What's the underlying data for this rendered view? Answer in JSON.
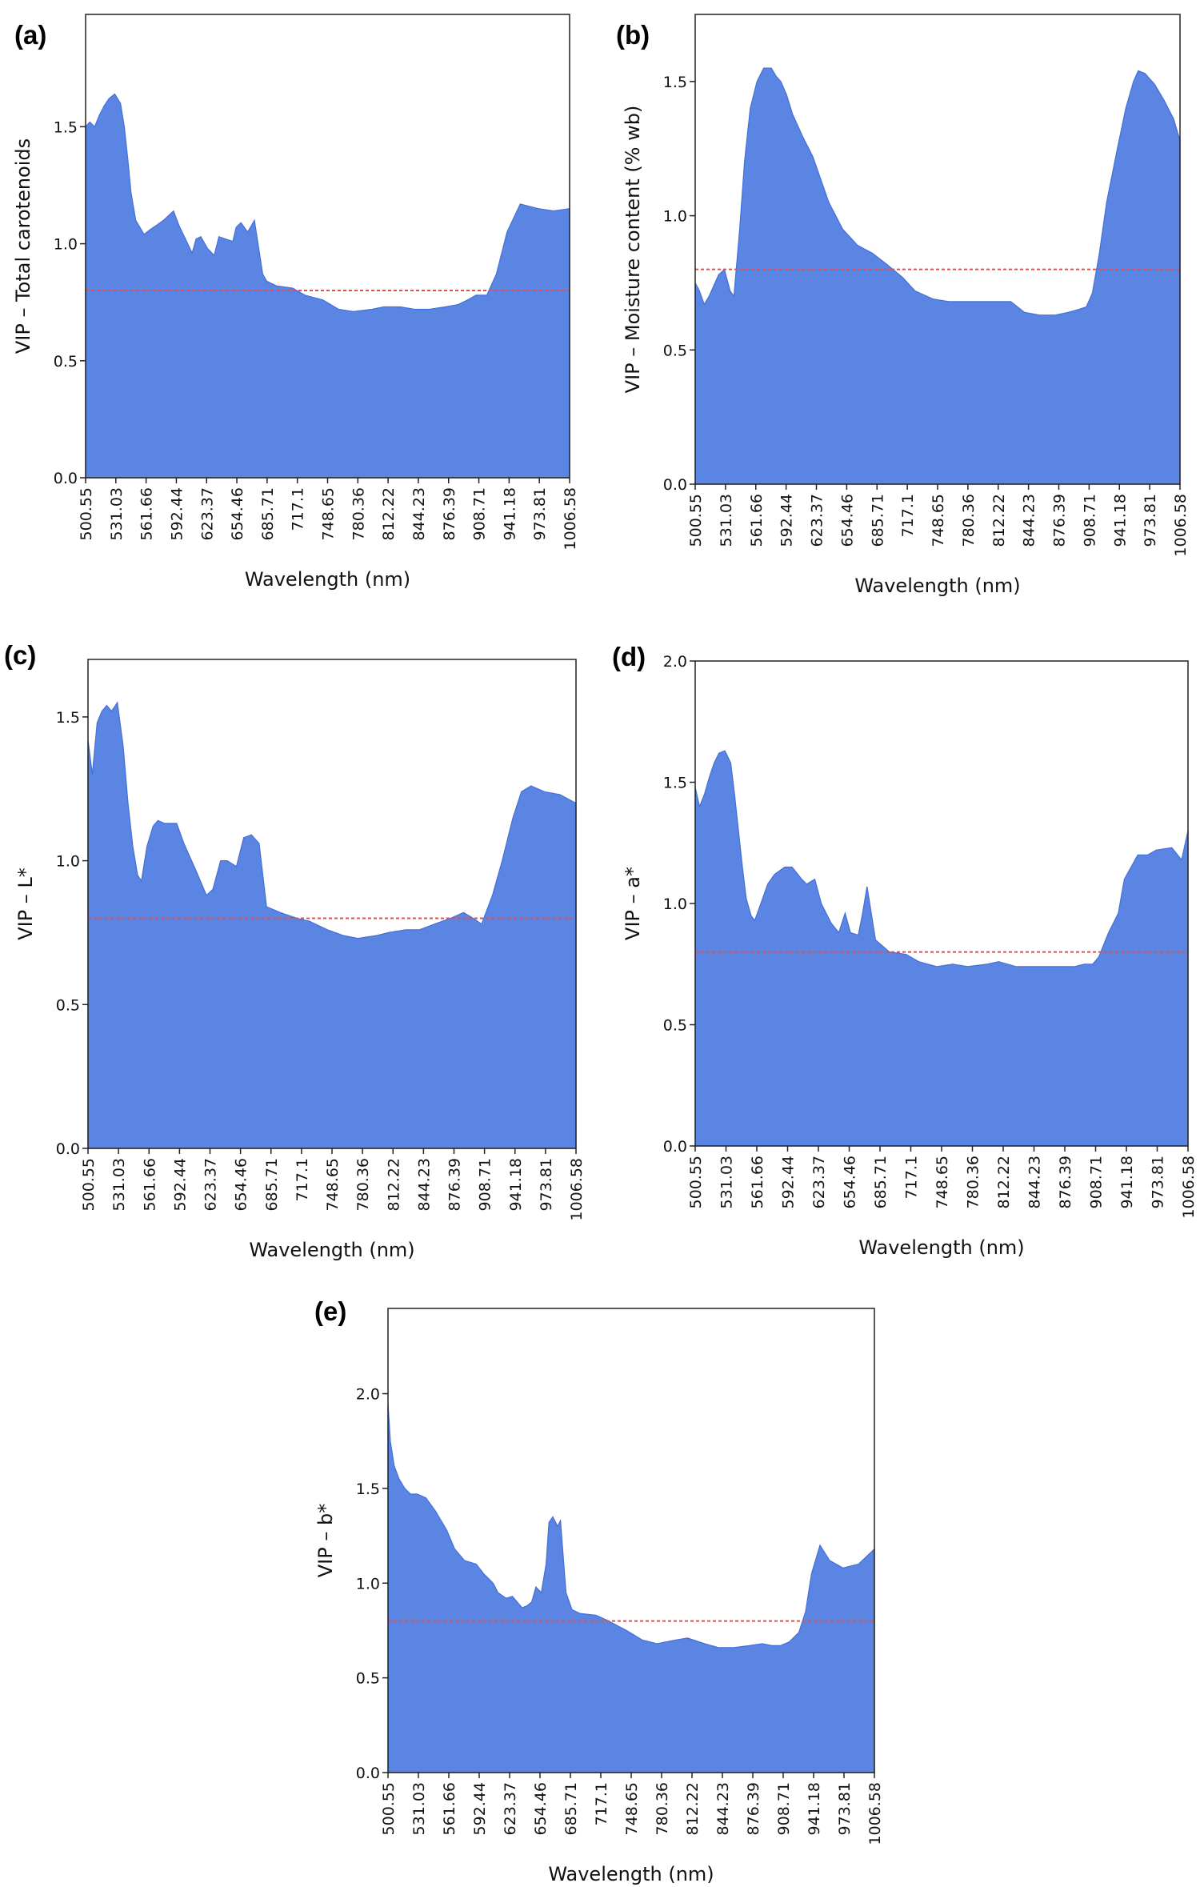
{
  "figure": {
    "background": "#ffffff"
  },
  "style": {
    "bar_color": "#5b85e3",
    "bar_edge": "#4470d6",
    "threshold_color": "#e05050",
    "axis_color": "#222222"
  },
  "chart_data": [
    {
      "panel": "(a)",
      "type": "area",
      "xlabel": "Wavelength (nm)",
      "ylabel": "VIP – Total carotenoids",
      "ylim": [
        0,
        1.98
      ],
      "yticks": [
        "0.0",
        "0.5",
        "1.0",
        "1.5"
      ],
      "x_ticks": [
        "500.55",
        "531.03",
        "561.66",
        "592.44",
        "623.37",
        "654.46",
        "685.71",
        "717.1",
        "748.65",
        "780.36",
        "812.22",
        "844.23",
        "876.39",
        "908.71",
        "941.18",
        "973.81",
        "1006.58"
      ],
      "threshold": 0.8,
      "x": [
        500.55,
        505,
        510,
        515,
        520,
        525,
        531.03,
        537,
        541,
        545,
        548,
        553,
        561.66,
        568,
        575,
        582,
        592.44,
        598,
        605,
        612,
        616,
        621,
        628,
        635,
        640,
        647,
        654.46,
        658,
        663,
        670,
        677,
        685.71,
        690,
        700,
        717.1,
        730,
        748.65,
        765,
        780.36,
        800,
        812.22,
        830,
        844.23,
        860,
        876.39,
        890,
        900,
        908.71,
        920,
        930,
        941.18,
        955,
        973.81,
        990,
        1006.58
      ],
      "y": [
        1.5,
        1.52,
        1.5,
        1.55,
        1.59,
        1.62,
        1.64,
        1.6,
        1.5,
        1.35,
        1.22,
        1.1,
        1.04,
        1.06,
        1.08,
        1.1,
        1.14,
        1.08,
        1.02,
        0.96,
        1.02,
        1.03,
        0.98,
        0.95,
        1.03,
        1.02,
        1.01,
        1.07,
        1.09,
        1.05,
        1.1,
        0.87,
        0.84,
        0.82,
        0.81,
        0.78,
        0.76,
        0.72,
        0.71,
        0.72,
        0.73,
        0.73,
        0.72,
        0.72,
        0.73,
        0.74,
        0.76,
        0.78,
        0.78,
        0.87,
        1.05,
        1.17,
        1.15,
        1.14,
        1.15
      ]
    },
    {
      "panel": "(b)",
      "type": "area",
      "xlabel": "Wavelength (nm)",
      "ylabel": "VIP – Moisture content (% wb)",
      "ylim": [
        0,
        1.75
      ],
      "yticks": [
        "0.0",
        "0.5",
        "1.0",
        "1.5"
      ],
      "x_ticks": [
        "500.55",
        "531.03",
        "561.66",
        "592.44",
        "623.37",
        "654.46",
        "685.71",
        "717.1",
        "748.65",
        "780.36",
        "812.22",
        "844.23",
        "876.39",
        "908.71",
        "941.18",
        "973.81",
        "1006.58"
      ],
      "threshold": 0.8,
      "x": [
        500.55,
        505,
        510,
        515,
        520,
        525,
        531.03,
        537,
        541,
        547,
        552,
        558,
        565,
        572,
        580,
        585,
        590,
        596,
        602,
        612,
        623.37,
        640,
        654.46,
        670,
        685.71,
        700,
        717.1,
        730,
        748.65,
        765,
        780.36,
        800,
        812.22,
        830,
        844.23,
        860,
        876.39,
        890,
        900,
        908.71,
        915,
        922,
        930,
        941.18,
        950,
        958,
        963,
        970,
        980,
        990,
        1000,
        1006.58
      ],
      "y": [
        0.75,
        0.72,
        0.67,
        0.7,
        0.74,
        0.78,
        0.8,
        0.72,
        0.7,
        0.95,
        1.2,
        1.4,
        1.5,
        1.55,
        1.55,
        1.52,
        1.5,
        1.45,
        1.38,
        1.3,
        1.22,
        1.05,
        0.95,
        0.89,
        0.86,
        0.82,
        0.77,
        0.72,
        0.69,
        0.68,
        0.68,
        0.68,
        0.68,
        0.68,
        0.64,
        0.63,
        0.63,
        0.64,
        0.65,
        0.66,
        0.71,
        0.85,
        1.05,
        1.25,
        1.4,
        1.5,
        1.54,
        1.53,
        1.49,
        1.43,
        1.36,
        1.28
      ]
    },
    {
      "panel": "(c)",
      "type": "area",
      "xlabel": "Wavelength (nm)",
      "ylabel": "VIP – L*",
      "ylim": [
        0,
        1.7
      ],
      "yticks": [
        "0.0",
        "0.5",
        "1.0",
        "1.5"
      ],
      "x_ticks": [
        "500.55",
        "531.03",
        "561.66",
        "592.44",
        "623.37",
        "654.46",
        "685.71",
        "717.1",
        "748.65",
        "780.36",
        "812.22",
        "844.23",
        "876.39",
        "908.71",
        "941.18",
        "973.81",
        "1006.58"
      ],
      "threshold": 0.8,
      "x": [
        500.55,
        505,
        510,
        515,
        520,
        525,
        531.03,
        537,
        542,
        547,
        552,
        556,
        561.66,
        568,
        573,
        580,
        592.44,
        600,
        612,
        623.37,
        630,
        638,
        645,
        654.46,
        662,
        670,
        678,
        685.71,
        700,
        717.1,
        730,
        748.65,
        765,
        780.36,
        800,
        812.22,
        830,
        844.23,
        860,
        876.39,
        890,
        900,
        908.71,
        920,
        930,
        941.18,
        950,
        960,
        973.81,
        990,
        1006.58
      ],
      "y": [
        1.42,
        1.3,
        1.48,
        1.52,
        1.54,
        1.52,
        1.55,
        1.4,
        1.2,
        1.05,
        0.95,
        0.93,
        1.05,
        1.12,
        1.14,
        1.13,
        1.13,
        1.06,
        0.97,
        0.88,
        0.9,
        1.0,
        1.0,
        0.98,
        1.08,
        1.09,
        1.06,
        0.84,
        0.82,
        0.8,
        0.79,
        0.76,
        0.74,
        0.73,
        0.74,
        0.75,
        0.76,
        0.76,
        0.78,
        0.8,
        0.82,
        0.8,
        0.78,
        0.88,
        1.0,
        1.15,
        1.24,
        1.26,
        1.24,
        1.23,
        1.2
      ]
    },
    {
      "panel": "(d)",
      "type": "area",
      "xlabel": "Wavelength (nm)",
      "ylabel": "VIP – a*",
      "ylim": [
        0,
        2.0
      ],
      "yticks": [
        "0.0",
        "0.5",
        "1.0",
        "1.5",
        "2.0"
      ],
      "x_ticks": [
        "500.55",
        "531.03",
        "561.66",
        "592.44",
        "623.37",
        "654.46",
        "685.71",
        "717.1",
        "748.65",
        "780.36",
        "812.22",
        "844.23",
        "876.39",
        "908.71",
        "941.18",
        "973.81",
        "1006.58"
      ],
      "threshold": 0.8,
      "x": [
        500.55,
        505,
        510,
        515,
        520,
        525,
        531.03,
        537,
        541,
        545,
        549,
        553,
        558,
        561.66,
        568,
        575,
        582,
        592.44,
        600,
        610,
        615,
        623.37,
        630,
        640,
        648,
        654.46,
        660,
        668,
        672,
        677,
        685.71,
        700,
        717.1,
        730,
        748.65,
        765,
        780.36,
        800,
        812.22,
        830,
        844.23,
        860,
        876.39,
        890,
        900,
        908.71,
        915,
        925,
        935,
        941.18,
        955,
        965,
        973.81,
        990,
        1000,
        1006.58
      ],
      "y": [
        1.48,
        1.4,
        1.45,
        1.52,
        1.58,
        1.62,
        1.63,
        1.58,
        1.45,
        1.3,
        1.15,
        1.02,
        0.95,
        0.93,
        1.0,
        1.08,
        1.12,
        1.15,
        1.15,
        1.1,
        1.08,
        1.1,
        1.0,
        0.92,
        0.88,
        0.96,
        0.88,
        0.87,
        0.95,
        1.07,
        0.85,
        0.8,
        0.79,
        0.76,
        0.74,
        0.75,
        0.74,
        0.75,
        0.76,
        0.74,
        0.74,
        0.74,
        0.74,
        0.74,
        0.75,
        0.75,
        0.78,
        0.88,
        0.96,
        1.1,
        1.2,
        1.2,
        1.22,
        1.23,
        1.18,
        1.3
      ]
    },
    {
      "panel": "(e)",
      "type": "area",
      "xlabel": "Wavelength (nm)",
      "ylabel": "VIP – b*",
      "ylim": [
        0,
        2.45
      ],
      "yticks": [
        "0.0",
        "0.5",
        "1.0",
        "1.5",
        "2.0"
      ],
      "x_ticks": [
        "500.55",
        "531.03",
        "561.66",
        "592.44",
        "623.37",
        "654.46",
        "685.71",
        "717.1",
        "748.65",
        "780.36",
        "812.22",
        "844.23",
        "876.39",
        "908.71",
        "941.18",
        "973.81",
        "1006.58"
      ],
      "threshold": 0.8,
      "x": [
        500.55,
        503,
        507,
        512,
        518,
        524,
        531.03,
        540,
        550,
        561.66,
        570,
        580,
        592.44,
        600,
        610,
        615,
        623.37,
        630,
        635,
        640,
        645,
        650,
        654.46,
        660,
        665,
        668,
        672,
        677,
        680,
        685.71,
        692,
        700,
        717.1,
        730,
        748.65,
        765,
        780.36,
        800,
        812.22,
        830,
        844.23,
        860,
        876.39,
        890,
        900,
        908.71,
        918,
        928,
        935,
        941.18,
        950,
        960,
        973.81,
        990,
        1006.58
      ],
      "y": [
        1.95,
        1.75,
        1.62,
        1.55,
        1.5,
        1.47,
        1.47,
        1.45,
        1.38,
        1.28,
        1.18,
        1.12,
        1.1,
        1.05,
        1.0,
        0.95,
        0.92,
        0.93,
        0.9,
        0.87,
        0.88,
        0.9,
        0.98,
        0.95,
        1.1,
        1.32,
        1.35,
        1.3,
        1.33,
        0.95,
        0.86,
        0.84,
        0.83,
        0.8,
        0.75,
        0.7,
        0.68,
        0.7,
        0.71,
        0.68,
        0.66,
        0.66,
        0.67,
        0.68,
        0.67,
        0.67,
        0.69,
        0.74,
        0.85,
        1.05,
        1.2,
        1.12,
        1.08,
        1.1,
        1.18
      ]
    }
  ]
}
